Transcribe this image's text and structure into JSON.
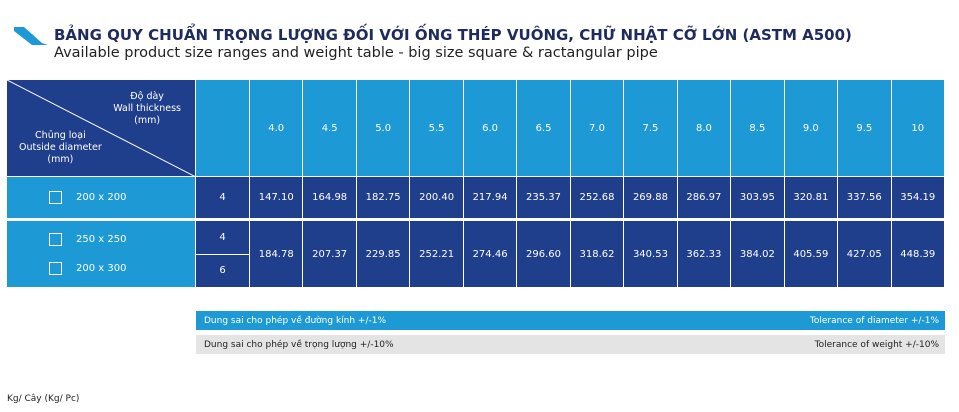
{
  "title": "BẢNG QUY CHUẨN TRỌNG LƯỢNG ĐỐI VỚI ỐNG THÉP VUÔNG, CHỮ NHẬT CỠ LỚN (ASTM A500)",
  "subtitle": "Available product size ranges and weight table - big size square & ractangular pipe",
  "table": {
    "corner": {
      "thickness_vi": "Độ dày",
      "thickness_en": "Wall thickness",
      "thickness_unit": "(mm)",
      "diameter_vi": "Chủng loại",
      "diameter_en": "Outside diameter",
      "diameter_unit": "(mm)"
    },
    "thicknesses": [
      "4.0",
      "4.5",
      "5.0",
      "5.5",
      "6.0",
      "6.5",
      "7.0",
      "7.5",
      "8.0",
      "8.5",
      "9.0",
      "9.5",
      "10"
    ],
    "rows": [
      {
        "sizes": [
          {
            "label": "200 x 200",
            "count": 4
          }
        ],
        "weights": [
          "147.10",
          "164.98",
          "182.75",
          "200.40",
          "217.94",
          "235.37",
          "252.68",
          "269.88",
          "286.97",
          "303.95",
          "320.81",
          "337.56",
          "354.19"
        ]
      },
      {
        "sizes": [
          {
            "label": "250 x 250",
            "count": 4
          },
          {
            "label": "200 x 300",
            "count": 6
          }
        ],
        "weights": [
          "184.78",
          "207.37",
          "229.85",
          "252.21",
          "274.46",
          "296.60",
          "318.62",
          "340.53",
          "362.33",
          "384.02",
          "405.59",
          "427.05",
          "448.39"
        ]
      }
    ]
  },
  "tolerances": [
    {
      "vi": "Dung sai cho phép về đường kính +/-1%",
      "en": "Tolerance of diameter +/-1%"
    },
    {
      "vi": "Dung sai cho phép về trọng lượng +/-10%",
      "en": "Tolerance of weight +/-10%"
    }
  ],
  "unit": "Kg/ Cây (Kg/ Pc)"
}
